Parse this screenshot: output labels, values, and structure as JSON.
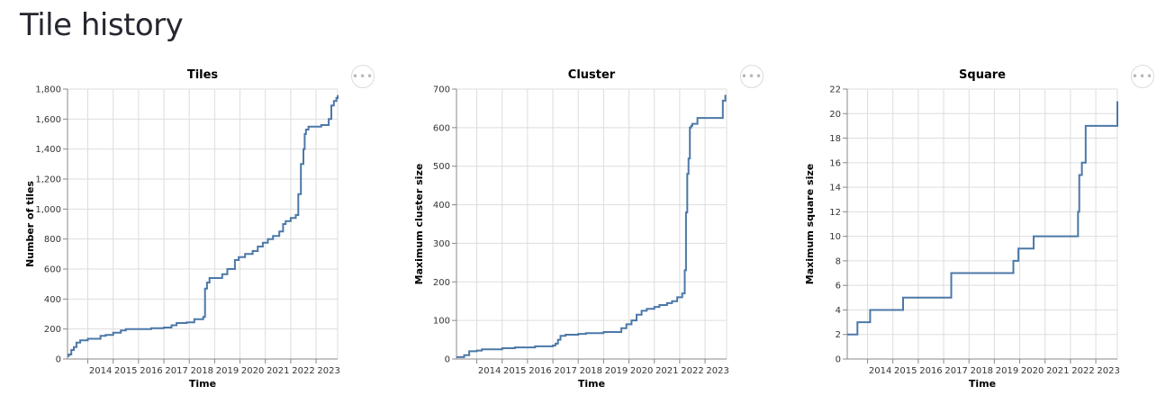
{
  "page": {
    "title": "Tile history"
  },
  "menu_icon": "ellipsis-icon",
  "colors": {
    "line": "#4c78a8",
    "grid": "#dddddd",
    "axis": "#888888"
  },
  "chart_data": [
    {
      "type": "line",
      "interpolation": "step",
      "title": "Tiles",
      "xlabel": "Time",
      "ylabel": "Number of tiles",
      "xlim": [
        2013.2,
        2023.85
      ],
      "ylim": [
        0,
        1800
      ],
      "xticks": [
        "2014",
        "2015",
        "2016",
        "2017",
        "2018",
        "2019",
        "2020",
        "2021",
        "2022",
        "2023"
      ],
      "yticks": [
        "0",
        "200",
        "400",
        "600",
        "800",
        "1,000",
        "1,200",
        "1,400",
        "1,600",
        "1,800"
      ],
      "grid": true,
      "x": [
        2013.2,
        2013.25,
        2013.35,
        2013.45,
        2013.55,
        2013.7,
        2014.0,
        2014.5,
        2014.7,
        2015.0,
        2015.3,
        2015.5,
        2016.0,
        2016.5,
        2017.0,
        2017.3,
        2017.5,
        2017.9,
        2018.2,
        2018.55,
        2018.62,
        2018.7,
        2018.8,
        2019.3,
        2019.5,
        2019.8,
        2019.95,
        2020.2,
        2020.5,
        2020.7,
        2020.9,
        2021.1,
        2021.3,
        2021.55,
        2021.7,
        2021.8,
        2022.0,
        2022.2,
        2022.3,
        2022.4,
        2022.5,
        2022.55,
        2022.6,
        2022.7,
        2023.2,
        2023.5,
        2023.6,
        2023.7,
        2023.8,
        2023.85
      ],
      "y": [
        20,
        30,
        60,
        80,
        110,
        125,
        135,
        155,
        160,
        175,
        190,
        200,
        200,
        205,
        210,
        225,
        240,
        245,
        265,
        280,
        470,
        510,
        540,
        565,
        600,
        660,
        680,
        700,
        720,
        750,
        775,
        800,
        820,
        850,
        900,
        920,
        940,
        960,
        1100,
        1300,
        1400,
        1500,
        1530,
        1550,
        1560,
        1600,
        1690,
        1720,
        1740,
        1760
      ]
    },
    {
      "type": "line",
      "interpolation": "step",
      "title": "Cluster",
      "xlabel": "Time",
      "ylabel": "Maximum cluster size",
      "xlim": [
        2013.2,
        2023.85
      ],
      "ylim": [
        0,
        700
      ],
      "xticks": [
        "2014",
        "2015",
        "2016",
        "2017",
        "2018",
        "2019",
        "2020",
        "2021",
        "2022",
        "2023"
      ],
      "yticks": [
        "0",
        "100",
        "200",
        "300",
        "400",
        "500",
        "600",
        "700"
      ],
      "grid": true,
      "x": [
        2013.2,
        2013.5,
        2013.7,
        2014.0,
        2014.2,
        2015.0,
        2015.5,
        2016.3,
        2017.0,
        2017.1,
        2017.2,
        2017.3,
        2017.5,
        2018.0,
        2018.3,
        2019.0,
        2019.7,
        2019.9,
        2020.1,
        2020.3,
        2020.5,
        2020.7,
        2021.0,
        2021.2,
        2021.5,
        2021.7,
        2021.9,
        2022.1,
        2022.2,
        2022.25,
        2022.3,
        2022.35,
        2022.4,
        2022.45,
        2022.5,
        2022.7,
        2023.7,
        2023.8
      ],
      "y": [
        5,
        10,
        20,
        22,
        25,
        28,
        30,
        33,
        35,
        40,
        50,
        60,
        63,
        65,
        67,
        70,
        80,
        90,
        100,
        115,
        125,
        130,
        135,
        140,
        145,
        150,
        160,
        170,
        230,
        380,
        480,
        520,
        600,
        605,
        610,
        625,
        670,
        685
      ]
    },
    {
      "type": "line",
      "interpolation": "step",
      "title": "Square",
      "xlabel": "Time",
      "ylabel": "Maximum square size",
      "xlim": [
        2013.2,
        2023.85
      ],
      "ylim": [
        0,
        22
      ],
      "xticks": [
        "2014",
        "2015",
        "2016",
        "2017",
        "2018",
        "2019",
        "2020",
        "2021",
        "2022",
        "2023"
      ],
      "yticks": [
        "0",
        "2",
        "4",
        "6",
        "8",
        "10",
        "12",
        "14",
        "16",
        "18",
        "20",
        "22"
      ],
      "grid": true,
      "x": [
        2013.2,
        2013.6,
        2014.1,
        2015.4,
        2017.3,
        2019.75,
        2019.95,
        2020.55,
        2022.3,
        2022.35,
        2022.45,
        2022.6,
        2023.85
      ],
      "y": [
        2,
        3,
        4,
        5,
        7,
        8,
        9,
        10,
        12,
        15,
        16,
        19,
        21
      ]
    }
  ]
}
